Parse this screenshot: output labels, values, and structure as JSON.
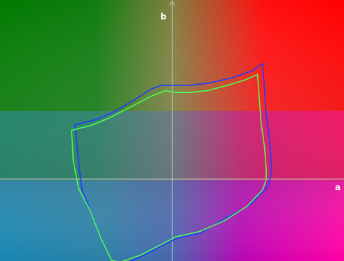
{
  "chart_data": {
    "type": "line",
    "title": "",
    "xlabel": "a",
    "ylabel": "b",
    "xlim": [
      -1,
      1
    ],
    "ylim": [
      -1,
      1
    ],
    "grid": false,
    "legend": "none",
    "series": [
      {
        "color": "#1e3cff",
        "closed": true,
        "x": [
          -0.56,
          -0.44,
          -0.34,
          -0.2,
          -0.12,
          -0.06,
          0.02,
          0.1,
          0.2,
          0.34,
          0.46,
          0.52,
          0.53,
          0.54,
          0.56,
          0.57,
          0.57,
          0.55,
          0.45,
          0.3,
          0.16,
          0.02,
          -0.08,
          -0.18,
          -0.3,
          -0.34,
          -0.4,
          -0.46,
          -0.52,
          -0.54,
          -0.56
        ],
        "y": [
          0.3,
          0.33,
          0.37,
          0.45,
          0.5,
          0.52,
          0.52,
          0.52,
          0.53,
          0.56,
          0.6,
          0.64,
          0.5,
          0.36,
          0.22,
          0.08,
          0.03,
          -0.04,
          -0.14,
          -0.22,
          -0.3,
          -0.33,
          -0.38,
          -0.43,
          -0.48,
          -0.47,
          -0.35,
          -0.2,
          -0.06,
          0.1,
          0.3
        ]
      },
      {
        "color": "#4dff4d",
        "closed": true,
        "x": [
          -0.58,
          -0.46,
          -0.36,
          -0.22,
          -0.12,
          -0.04,
          0.02,
          0.1,
          0.2,
          0.32,
          0.42,
          0.49,
          0.5,
          0.51,
          0.53,
          0.54,
          0.54,
          0.52,
          0.43,
          0.3,
          0.16,
          0.02,
          -0.08,
          -0.18,
          -0.3,
          -0.35,
          -0.41,
          -0.47,
          -0.54,
          -0.57,
          -0.58
        ],
        "y": [
          0.27,
          0.3,
          0.34,
          0.41,
          0.46,
          0.49,
          0.48,
          0.48,
          0.49,
          0.52,
          0.55,
          0.58,
          0.45,
          0.32,
          0.18,
          0.06,
          0.0,
          -0.06,
          -0.15,
          -0.23,
          -0.29,
          -0.32,
          -0.37,
          -0.42,
          -0.46,
          -0.45,
          -0.33,
          -0.18,
          -0.05,
          0.1,
          0.27
        ]
      }
    ]
  }
}
